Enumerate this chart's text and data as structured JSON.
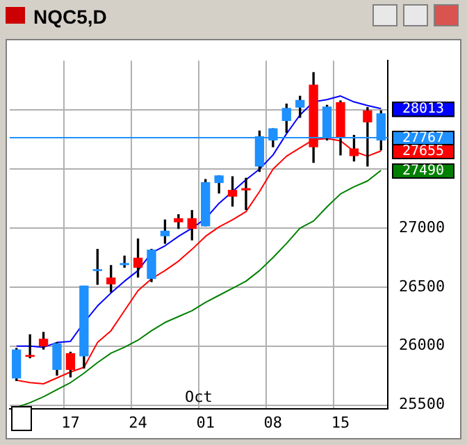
{
  "chart_data": {
    "type": "candlestick",
    "title": "NQC5,D",
    "categories": [
      null,
      null,
      null,
      null,
      "17",
      null,
      null,
      null,
      null,
      "24",
      null,
      null,
      null,
      null,
      "01",
      null,
      null,
      null,
      null,
      "08",
      null,
      null,
      null,
      null,
      "15",
      null,
      null,
      null
    ],
    "ohlc": [
      [
        25730,
        25980,
        25707,
        25967
      ],
      [
        25920,
        26096,
        25900,
        25912
      ],
      [
        26058,
        26116,
        25974,
        26001
      ],
      [
        25802,
        26030,
        25753,
        26020
      ],
      [
        25936,
        25948,
        25738,
        25802
      ],
      [
        25917,
        26508,
        25814,
        26508
      ],
      [
        26640,
        26820,
        26523,
        26648
      ],
      [
        26577,
        26683,
        26459,
        26527
      ],
      [
        26690,
        26763,
        26668,
        26700
      ],
      [
        26745,
        26908,
        26585,
        26668
      ],
      [
        26573,
        26820,
        26546,
        26814
      ],
      [
        26935,
        27069,
        26871,
        26974
      ],
      [
        27080,
        27114,
        26997,
        27053
      ],
      [
        27080,
        27149,
        26900,
        26997
      ],
      [
        27019,
        27412,
        27019,
        27386
      ],
      [
        27386,
        27443,
        27297,
        27443
      ],
      [
        27320,
        27435,
        27186,
        27271
      ],
      [
        27335,
        27423,
        27157,
        27324
      ],
      [
        27526,
        27824,
        27480,
        27774
      ],
      [
        27747,
        27843,
        27690,
        27843
      ],
      [
        27912,
        28052,
        27812,
        28015
      ],
      [
        28026,
        28118,
        27938,
        28083
      ],
      [
        28213,
        28319,
        27557,
        27690
      ],
      [
        27767,
        28041,
        27747,
        28026
      ],
      [
        28064,
        28079,
        27621,
        27774
      ],
      [
        27671,
        27786,
        27569,
        27614
      ],
      [
        27995,
        28022,
        27526,
        27900
      ],
      [
        27747,
        27995,
        27663,
        27969
      ]
    ],
    "colors": [
      "#1e90ff",
      "#ff0000",
      "#ff0000",
      "#1e90ff",
      "#ff0000",
      "#1e90ff",
      "#1e90ff",
      "#ff0000",
      "#1e90ff",
      "#ff0000",
      "#1e90ff",
      "#1e90ff",
      "#ff0000",
      "#ff0000",
      "#1e90ff",
      "#1e90ff",
      "#ff0000",
      "#ff0000",
      "#1e90ff",
      "#1e90ff",
      "#1e90ff",
      "#1e90ff",
      "#ff0000",
      "#1e90ff",
      "#ff0000",
      "#ff0000",
      "#ff0000",
      "#1e90ff"
    ],
    "series": [
      {
        "type": "line",
        "color": "#0000ff",
        "values": [
          26000,
          26000,
          25990,
          26030,
          26040,
          26200,
          26340,
          26450,
          26550,
          26640,
          26790,
          26850,
          26930,
          27000,
          27080,
          27210,
          27310,
          27410,
          27500,
          27620,
          27800,
          27960,
          28070,
          28090,
          28120,
          28070,
          28040,
          28013
        ],
        "value_labels": [
          null,
          null,
          null,
          null,
          null,
          null,
          null,
          null,
          null,
          null,
          null,
          null,
          null,
          null,
          null,
          null,
          null,
          null,
          null,
          null,
          null,
          null,
          null,
          null,
          null,
          null,
          null,
          "28013"
        ]
      },
      {
        "type": "line",
        "color": "#ff0000",
        "values": [
          25710,
          25690,
          25680,
          25730,
          25780,
          25820,
          26030,
          26130,
          26300,
          26470,
          26570,
          26640,
          26720,
          26820,
          26930,
          27010,
          27070,
          27140,
          27310,
          27500,
          27610,
          27680,
          27750,
          27760,
          27740,
          27650,
          27610,
          27655
        ],
        "value_labels": [
          null,
          null,
          null,
          null,
          null,
          null,
          null,
          null,
          null,
          null,
          null,
          null,
          null,
          null,
          null,
          null,
          null,
          null,
          null,
          null,
          null,
          null,
          null,
          null,
          null,
          null,
          null,
          "27655"
        ]
      },
      {
        "type": "line",
        "color": "#008000",
        "values": [
          25480,
          25520,
          25570,
          25630,
          25690,
          25770,
          25860,
          25940,
          25990,
          26050,
          26130,
          26200,
          26250,
          26300,
          26370,
          26430,
          26490,
          26550,
          26640,
          26750,
          26870,
          27000,
          27060,
          27180,
          27290,
          27350,
          27400,
          27490
        ],
        "value_labels": [
          null,
          null,
          null,
          null,
          null,
          null,
          null,
          null,
          null,
          null,
          null,
          null,
          null,
          null,
          null,
          null,
          null,
          null,
          null,
          null,
          null,
          null,
          null,
          null,
          null,
          null,
          null,
          "27490"
        ]
      }
    ],
    "ref_lines": [
      {
        "axis": "y",
        "value": 27767,
        "label": "27767",
        "color": "#1e90ff"
      }
    ],
    "annotations": [
      "Oct"
    ],
    "ylim": [
      25470,
      28420
    ],
    "yticks": [
      25500,
      26000,
      26500,
      27000,
      {
        "value": 27500,
        "label": null
      },
      {
        "value": 28000,
        "label": null
      }
    ],
    "grid": true,
    "legend": false,
    "marker": "none"
  }
}
